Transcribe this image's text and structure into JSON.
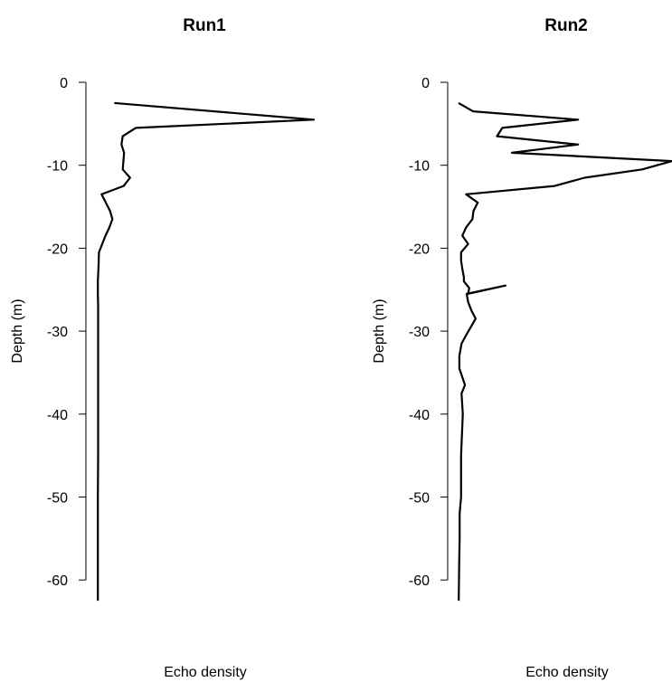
{
  "chart_data": [
    {
      "type": "line",
      "title": "Run1",
      "xlabel": "Echo density",
      "ylabel": "Depth (m)",
      "ylim": [
        -62.5,
        0
      ],
      "y_ticks": [
        0,
        -10,
        -20,
        -30,
        -40,
        -50,
        -60
      ],
      "x_axis": "none (no ticks or tick labels)",
      "grid": false,
      "series": [
        {
          "x": [
            0.077,
            1.0,
            0.176,
            0.116,
            0.11,
            0.122,
            0.116,
            0.15,
            0.12,
            0.018,
            0.057,
            0.068,
            0.054,
            0.036,
            0.006,
            0.004,
            0.001,
            0.001,
            0.002,
            0.002,
            0.002,
            0.002,
            0.002,
            0.001,
            0.001,
            0.001
          ],
          "y": [
            -2.5,
            -4.5,
            -5.5,
            -6.5,
            -7.5,
            -8.5,
            -10.5,
            -11.5,
            -12.5,
            -13.5,
            -15.5,
            -16.5,
            -17.5,
            -18.5,
            -20.5,
            -22,
            -24,
            -25.5,
            -27,
            -30,
            -35,
            -40,
            -45,
            -50,
            -55,
            -62.5
          ]
        }
      ]
    },
    {
      "type": "line",
      "title": "Run2",
      "xlabel": "Echo density",
      "ylabel": "Depth (m)",
      "ylim": [
        -62.5,
        0
      ],
      "y_ticks": [
        0,
        -10,
        -20,
        -30,
        -40,
        -50,
        -60
      ],
      "x_axis": "none (no ticks or tick labels)",
      "grid": false,
      "series": [
        {
          "x": [
            0.0,
            0.068,
            0.56,
            0.205,
            0.18,
            0.56,
            0.25,
            1.0,
            0.86,
            0.59,
            0.45,
            0.035,
            0.09,
            0.07,
            0.065,
            0.035,
            0.018,
            0.045,
            0.012,
            0.012,
            0.018,
            0.025,
            0.025,
            0.05,
            0.045,
            0.22,
            0.038,
            0.045,
            0.06,
            0.08,
            0.035,
            0.014,
            0.004,
            0.004,
            0.017,
            0.03,
            0.014,
            0.02,
            0.012,
            0.012,
            0.012,
            0.005,
            0.005,
            0.003,
            0.001
          ],
          "y": [
            -2.5,
            -3.5,
            -4.5,
            -5.5,
            -6.5,
            -7.5,
            -8.5,
            -9.5,
            -10.5,
            -11.5,
            -12.5,
            -13.5,
            -14.5,
            -15.5,
            -16.5,
            -17.5,
            -18.5,
            -19.5,
            -20.5,
            -21.5,
            -22.5,
            -23.5,
            -24,
            -24.8,
            -25.5,
            -24.5,
            -25.5,
            -26.5,
            -27.5,
            -28.5,
            -30.5,
            -31.5,
            -33,
            -34.5,
            -35.5,
            -36.5,
            -37.5,
            -40,
            -45,
            -47,
            -50,
            -52,
            -55,
            -58,
            -62.5
          ]
        }
      ]
    }
  ]
}
